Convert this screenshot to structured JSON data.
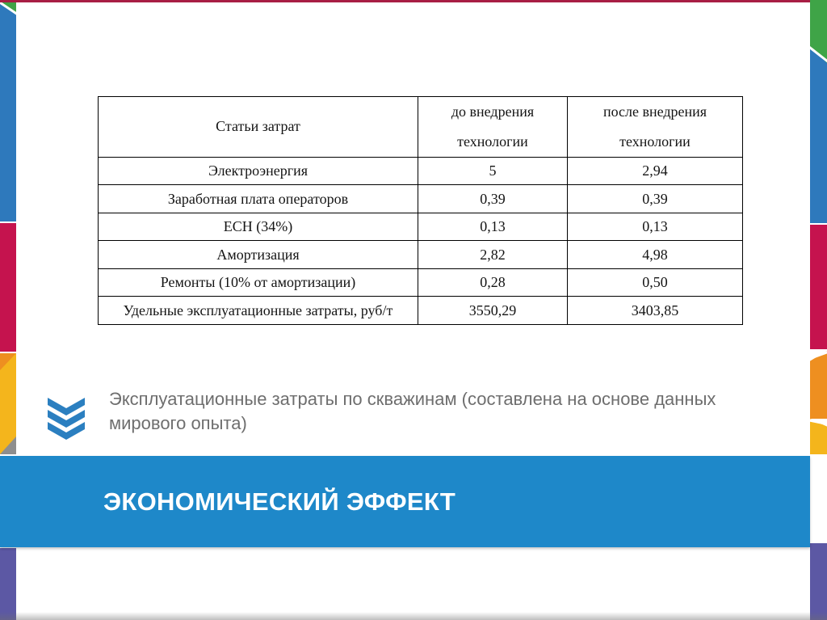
{
  "slide_title": {
    "text": "ЭКОНОМИЧЕСКИЙ ЭФФЕКТ"
  },
  "caption": {
    "line1": "Эксплуатационные затраты по скважинам (составлена на основе данных",
    "line2": "мирового опыта)"
  },
  "table": {
    "columns": [
      "Статьи затрат",
      "до внедрения\nтехнологии",
      "после внедрения\nтехнологии"
    ],
    "rows": [
      [
        "Электроэнергия",
        "5",
        "2,94"
      ],
      [
        "Заработная плата операторов",
        "0,39",
        "0,39"
      ],
      [
        "ЕСН (34%)",
        "0,13",
        "0,13"
      ],
      [
        "Амортизация",
        "2,82",
        "4,98"
      ],
      [
        "Ремонты (10% от амортизации)",
        "0,28",
        "0,50"
      ],
      [
        "Удельные эксплуатационные затраты, руб/т",
        "3550,29",
        "3403,85"
      ]
    ]
  },
  "icons": {
    "chevron": "triple-chevron-down-icon"
  },
  "colors": {
    "banner_blue": "#1E88C9",
    "chevron_blue": "#2B7FC0",
    "strip_blue": "#2E79BC",
    "strip_green": "#3FA447",
    "strip_crimson": "#C5134E",
    "strip_orange": "#EE8F20",
    "strip_yellow": "#F4B51C",
    "strip_purple": "#5C58A4",
    "strip_gray": "#8E8E8E",
    "top_line_red": "#A81E44",
    "caption_gray": "#6E6E6E",
    "title_white": "#FFFFFF"
  }
}
